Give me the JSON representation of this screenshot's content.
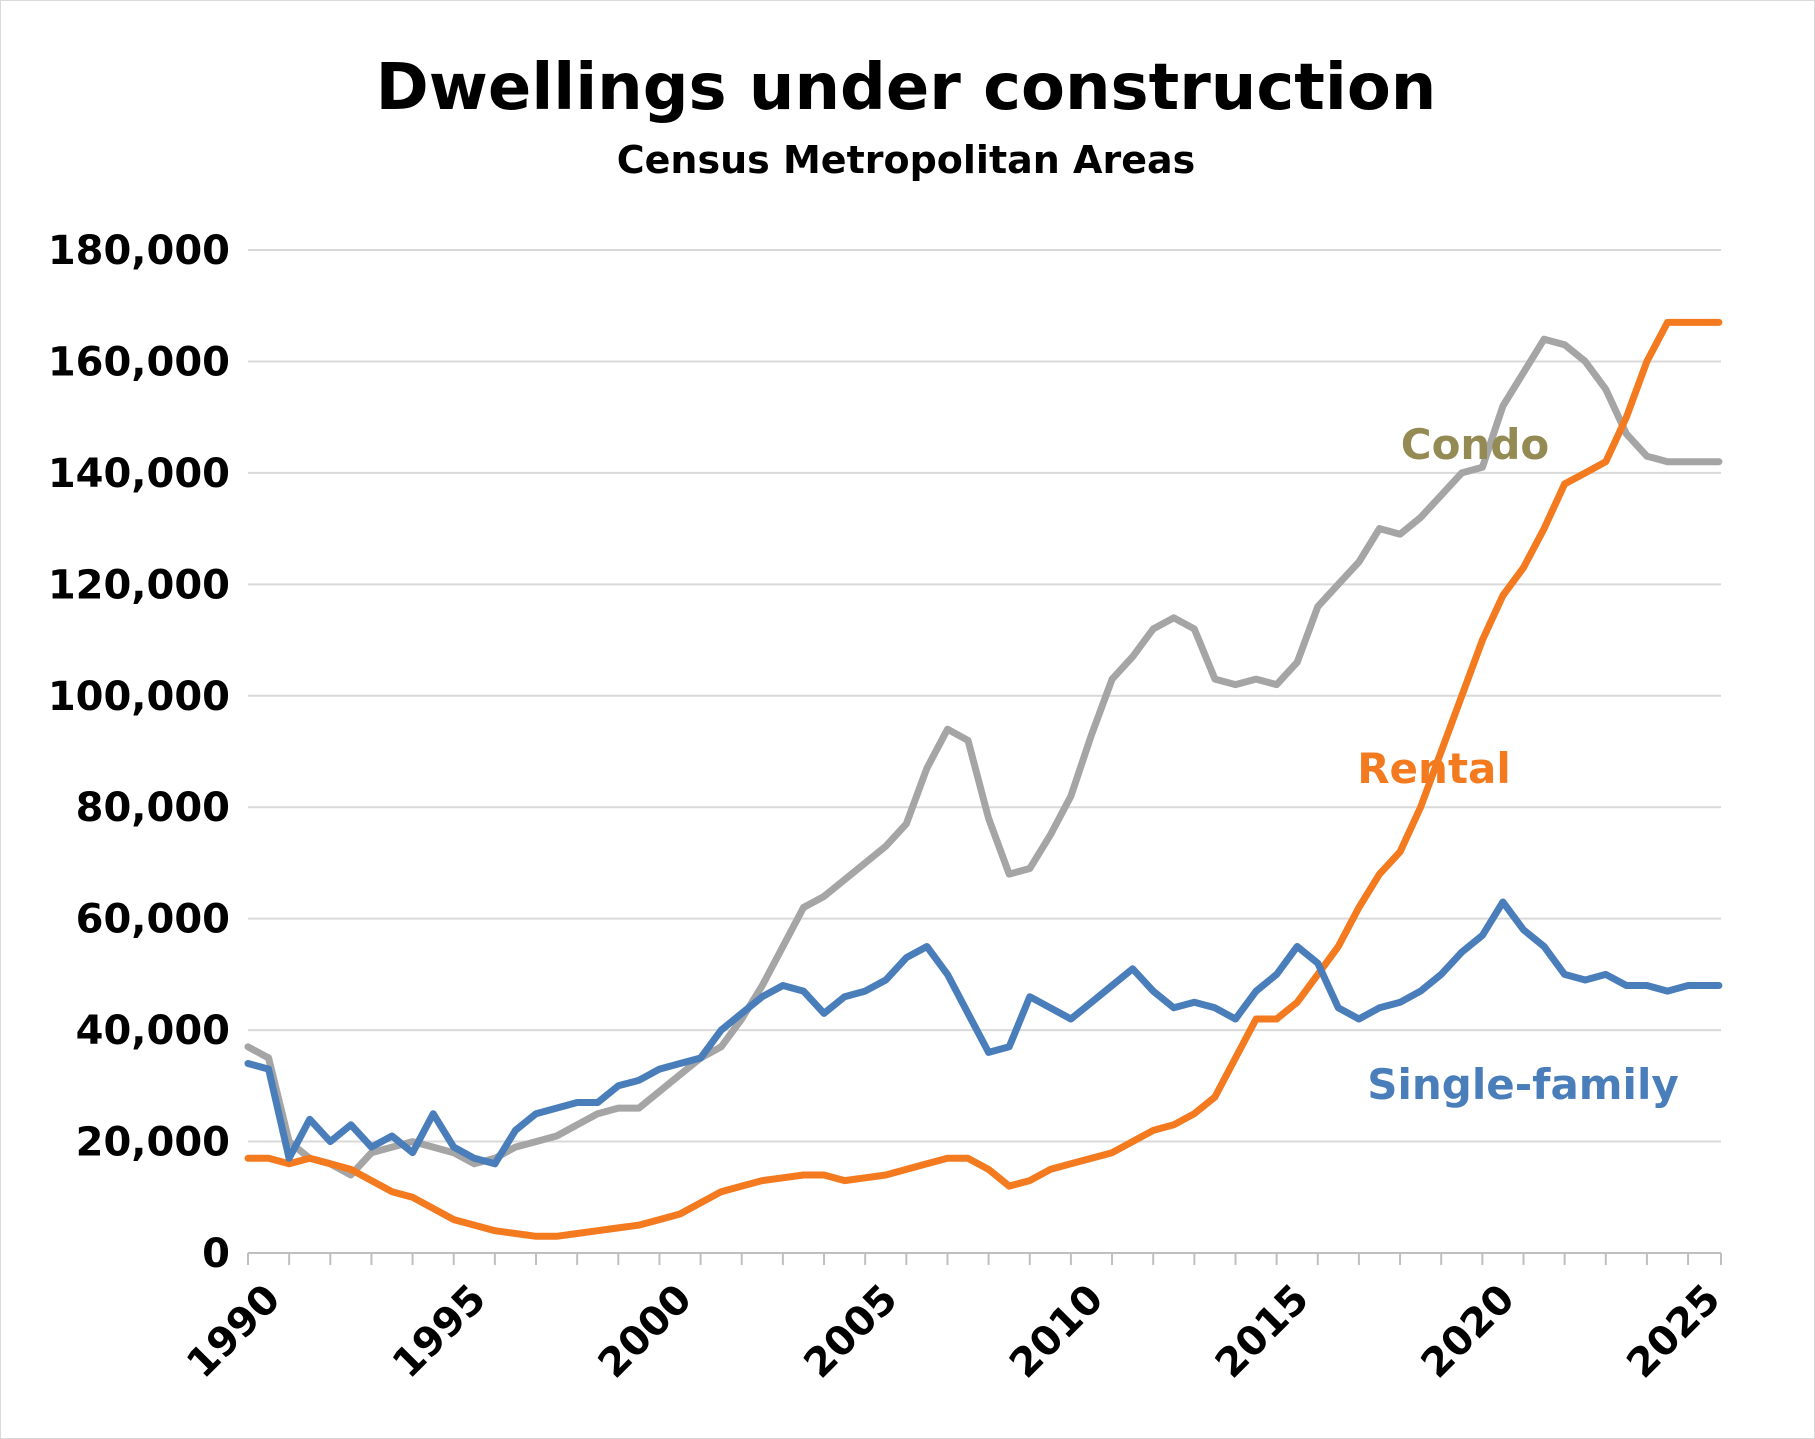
{
  "chart_data": {
    "type": "line",
    "title": "Dwellings under construction",
    "subtitle": "Census Metropolitan Areas",
    "xlabel": "",
    "ylabel": "",
    "xlim": [
      1990,
      2025.8
    ],
    "ylim": [
      0,
      180000
    ],
    "x_ticks": [
      1990,
      1995,
      2000,
      2005,
      2010,
      2015,
      2020,
      2025
    ],
    "x_tick_labels": [
      "1990",
      "1995",
      "2000",
      "2005",
      "2010",
      "2015",
      "2020",
      "2025"
    ],
    "y_ticks": [
      0,
      20000,
      40000,
      60000,
      80000,
      100000,
      120000,
      140000,
      160000,
      180000
    ],
    "y_tick_labels": [
      "0",
      "20,000",
      "40,000",
      "60,000",
      "80,000",
      "100,000",
      "120,000",
      "140,000",
      "160,000",
      "180,000"
    ],
    "grid": true,
    "legend": "inline labels",
    "series": [
      {
        "name": "Condo",
        "color": "#a5a5a5",
        "label_color": "#948a54",
        "x": [
          1990,
          1990.5,
          1991,
          1991.5,
          1992,
          1992.5,
          1993,
          1993.5,
          1994,
          1994.5,
          1995,
          1995.5,
          1996,
          1996.5,
          1997,
          1997.5,
          1998,
          1998.5,
          1999,
          1999.5,
          2000,
          2000.5,
          2001,
          2001.5,
          2002,
          2002.5,
          2003,
          2003.5,
          2004,
          2004.5,
          2005,
          2005.5,
          2006,
          2006.5,
          2007,
          2007.5,
          2008,
          2008.5,
          2009,
          2009.5,
          2010,
          2010.5,
          2011,
          2011.5,
          2012,
          2012.5,
          2013,
          2013.5,
          2014,
          2014.5,
          2015,
          2015.5,
          2016,
          2016.5,
          2017,
          2017.5,
          2018,
          2018.5,
          2019,
          2019.5,
          2020,
          2020.5,
          2021,
          2021.5,
          2022,
          2022.5,
          2023,
          2023.5,
          2024,
          2024.5,
          2025,
          2025.5,
          2025.75
        ],
        "values": [
          37000,
          35000,
          20000,
          17000,
          16000,
          14000,
          18000,
          19000,
          20000,
          19000,
          18000,
          16000,
          17000,
          19000,
          20000,
          21000,
          23000,
          25000,
          26000,
          26000,
          29000,
          32000,
          35000,
          37000,
          42000,
          48000,
          55000,
          62000,
          64000,
          67000,
          70000,
          73000,
          77000,
          87000,
          94000,
          92000,
          78000,
          68000,
          69000,
          75000,
          82000,
          93000,
          103000,
          107000,
          112000,
          114000,
          112000,
          103000,
          102000,
          103000,
          102000,
          106000,
          116000,
          120000,
          124000,
          130000,
          129000,
          132000,
          136000,
          140000,
          141000,
          152000,
          158000,
          164000,
          163000,
          160000,
          155000,
          147000,
          143000,
          142000,
          142000,
          142000,
          142000
        ]
      },
      {
        "name": "Rental",
        "color": "#f47a20",
        "label_color": "#f47a20",
        "x": [
          1990,
          1990.5,
          1991,
          1991.5,
          1992,
          1992.5,
          1993,
          1993.5,
          1994,
          1994.5,
          1995,
          1995.5,
          1996,
          1996.5,
          1997,
          1997.5,
          1998,
          1998.5,
          1999,
          1999.5,
          2000,
          2000.5,
          2001,
          2001.5,
          2002,
          2002.5,
          2003,
          2003.5,
          2004,
          2004.5,
          2005,
          2005.5,
          2006,
          2006.5,
          2007,
          2007.5,
          2008,
          2008.5,
          2009,
          2009.5,
          2010,
          2010.5,
          2011,
          2011.5,
          2012,
          2012.5,
          2013,
          2013.5,
          2014,
          2014.5,
          2015,
          2015.5,
          2016,
          2016.5,
          2017,
          2017.5,
          2018,
          2018.5,
          2019,
          2019.5,
          2020,
          2020.5,
          2021,
          2021.5,
          2022,
          2022.5,
          2023,
          2023.5,
          2024,
          2024.5,
          2025,
          2025.5,
          2025.75
        ],
        "values": [
          17000,
          17000,
          16000,
          17000,
          16000,
          15000,
          13000,
          11000,
          10000,
          8000,
          6000,
          5000,
          4000,
          3500,
          3000,
          3000,
          3500,
          4000,
          4500,
          5000,
          6000,
          7000,
          9000,
          11000,
          12000,
          13000,
          13500,
          14000,
          14000,
          13000,
          13500,
          14000,
          15000,
          16000,
          17000,
          17000,
          15000,
          12000,
          13000,
          15000,
          16000,
          17000,
          18000,
          20000,
          22000,
          23000,
          25000,
          28000,
          35000,
          42000,
          42000,
          45000,
          50000,
          55000,
          62000,
          68000,
          72000,
          80000,
          90000,
          100000,
          110000,
          118000,
          123000,
          130000,
          138000,
          140000,
          142000,
          150000,
          160000,
          167000,
          167000,
          167000,
          167000
        ]
      },
      {
        "name": "Single-family",
        "color": "#4a7ebb",
        "label_color": "#4a7ebb",
        "x": [
          1990,
          1990.5,
          1991,
          1991.5,
          1992,
          1992.5,
          1993,
          1993.5,
          1994,
          1994.5,
          1995,
          1995.5,
          1996,
          1996.5,
          1997,
          1997.5,
          1998,
          1998.5,
          1999,
          1999.5,
          2000,
          2000.5,
          2001,
          2001.5,
          2002,
          2002.5,
          2003,
          2003.5,
          2004,
          2004.5,
          2005,
          2005.5,
          2006,
          2006.5,
          2007,
          2007.5,
          2008,
          2008.5,
          2009,
          2009.5,
          2010,
          2010.5,
          2011,
          2011.5,
          2012,
          2012.5,
          2013,
          2013.5,
          2014,
          2014.5,
          2015,
          2015.5,
          2016,
          2016.5,
          2017,
          2017.5,
          2018,
          2018.5,
          2019,
          2019.5,
          2020,
          2020.5,
          2021,
          2021.5,
          2022,
          2022.5,
          2023,
          2023.5,
          2024,
          2024.5,
          2025,
          2025.5,
          2025.75
        ],
        "values": [
          34000,
          33000,
          17000,
          24000,
          20000,
          23000,
          19000,
          21000,
          18000,
          25000,
          19000,
          17000,
          16000,
          22000,
          25000,
          26000,
          27000,
          27000,
          30000,
          31000,
          33000,
          34000,
          35000,
          40000,
          43000,
          46000,
          48000,
          47000,
          43000,
          46000,
          47000,
          49000,
          53000,
          55000,
          50000,
          43000,
          36000,
          37000,
          46000,
          44000,
          42000,
          45000,
          48000,
          51000,
          47000,
          44000,
          45000,
          44000,
          42000,
          47000,
          50000,
          55000,
          52000,
          44000,
          42000,
          44000,
          45000,
          47000,
          50000,
          54000,
          57000,
          63000,
          58000,
          55000,
          50000,
          49000,
          50000,
          48000,
          48000,
          47000,
          48000,
          48000,
          48000
        ]
      }
    ]
  }
}
